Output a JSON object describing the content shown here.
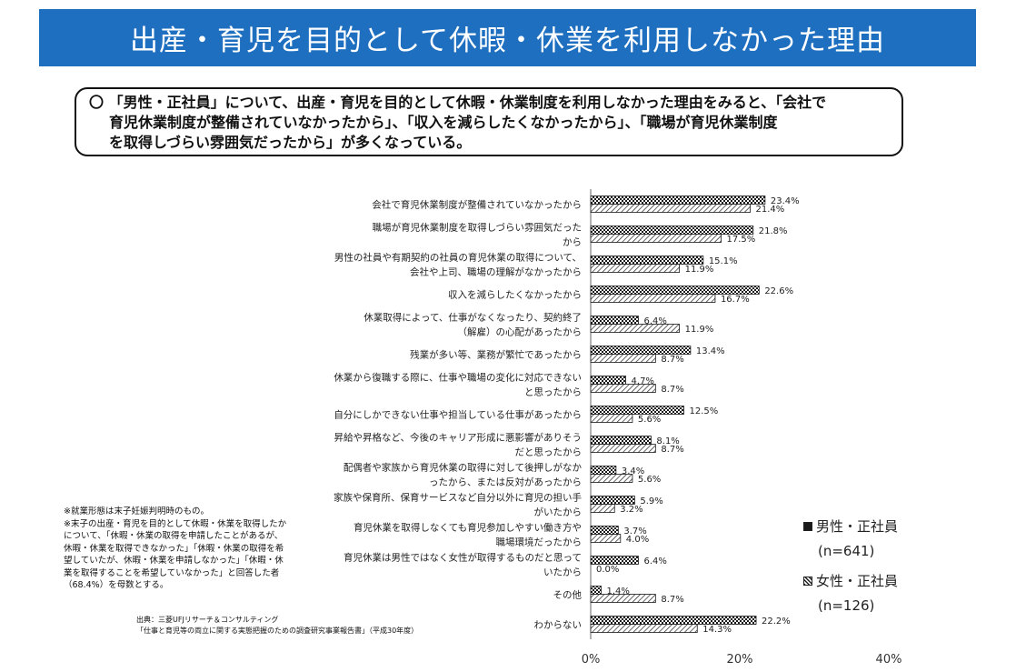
{
  "title": "出産・育児を目的として休暇・休業を利用しなかった理由",
  "summary": {
    "line1": "〇 「男性・正社員」について、出産・育児を目的として休暇・休業制度を利用しなかった理由をみると、「会社で",
    "line2": "育児休業制度が整備されていなかったから」、「収入を減らしたくなかったから」、「職場が育児休業制度",
    "line3": "を取得しづらい雰囲気だったから」が多くなっている。"
  },
  "notes": {
    "line1": "※就業形態は末子妊娠判明時のもの。",
    "line2": "※末子の出産・育児を目的として休暇・休業を取得したかについて、「休暇・休業の取得を申請したことがあるが、休暇・休業を取得できなかった」「休暇・休業の取得を希望していたが、休暇・休業を申請しなかった」「休暇・休業を取得することを希望していなかった」と回答した者（68.4%）を母数とする。"
  },
  "source": {
    "line1": "出典：三菱UFJリサーチ＆コンサルティング",
    "line2": "「仕事と育児等の両立に関する実態把握のための調査研究事業報告書」（平成30年度）"
  },
  "legend": {
    "male_label": "男性・正社員",
    "male_n": "(n=641)",
    "female_label": "女性・正社員",
    "female_n": "(n=126)"
  },
  "chart_data": {
    "type": "bar",
    "orientation": "horizontal",
    "xlim": [
      0,
      40
    ],
    "xticks": [
      "0%",
      "20%",
      "40%"
    ],
    "categories": [
      [
        "会社で育児休業制度が整備されていなかったから"
      ],
      [
        "職場が育児休業制度を取得しづらい雰囲気だった",
        "から"
      ],
      [
        "男性の社員や有期契約の社員の育児休業の取得について、",
        "会社や上司、職場の理解がなかったから"
      ],
      [
        "収入を減らしたくなかったから"
      ],
      [
        "休業取得によって、仕事がなくなったり、契約終了",
        "（解雇）の心配があったから"
      ],
      [
        "残業が多い等、業務が繁忙であったから"
      ],
      [
        "休業から復職する際に、仕事や職場の変化に対応できない",
        "と思ったから"
      ],
      [
        "自分にしかできない仕事や担当している仕事があったから"
      ],
      [
        "昇給や昇格など、今後のキャリア形成に悪影響がありそう",
        "だと思ったから"
      ],
      [
        "配偶者や家族から育児休業の取得に対して後押しがなか",
        "ったから、または反対があったから"
      ],
      [
        "家族や保育所、保育サービスなど自分以外に育児の担い手",
        "がいたから"
      ],
      [
        "育児休業を取得しなくても育児参加しやすい働き方や",
        "職場環境だったから"
      ],
      [
        "育児休業は男性ではなく女性が取得するものだと思って",
        "いたから"
      ],
      [
        "その他"
      ],
      [
        "わからない"
      ]
    ],
    "series": [
      {
        "name": "男性・正社員",
        "values": [
          23.4,
          21.8,
          15.1,
          22.6,
          6.4,
          13.4,
          4.7,
          12.5,
          8.1,
          3.4,
          5.9,
          3.7,
          6.4,
          1.4,
          22.2
        ],
        "labels": [
          "23.4%",
          "21.8%",
          "15.1%",
          "22.6%",
          "6.4%",
          "13.4%",
          "4.7%",
          "12.5%",
          "8.1%",
          "3.4%",
          "5.9%",
          "3.7%",
          "6.4%",
          "1.4%",
          "22.2%"
        ]
      },
      {
        "name": "女性・正社員",
        "values": [
          21.4,
          17.5,
          11.9,
          16.7,
          11.9,
          8.7,
          8.7,
          5.6,
          8.7,
          5.6,
          3.2,
          4.0,
          0.0,
          8.7,
          14.3
        ],
        "labels": [
          "21.4%",
          "17.5%",
          "11.9%",
          "16.7%",
          "11.9%",
          "8.7%",
          "8.7%",
          "5.6%",
          "8.7%",
          "5.6%",
          "3.2%",
          "4.0%",
          "0.0%",
          "8.7%",
          "14.3%"
        ]
      }
    ],
    "legend_position": "right",
    "grid": false
  }
}
